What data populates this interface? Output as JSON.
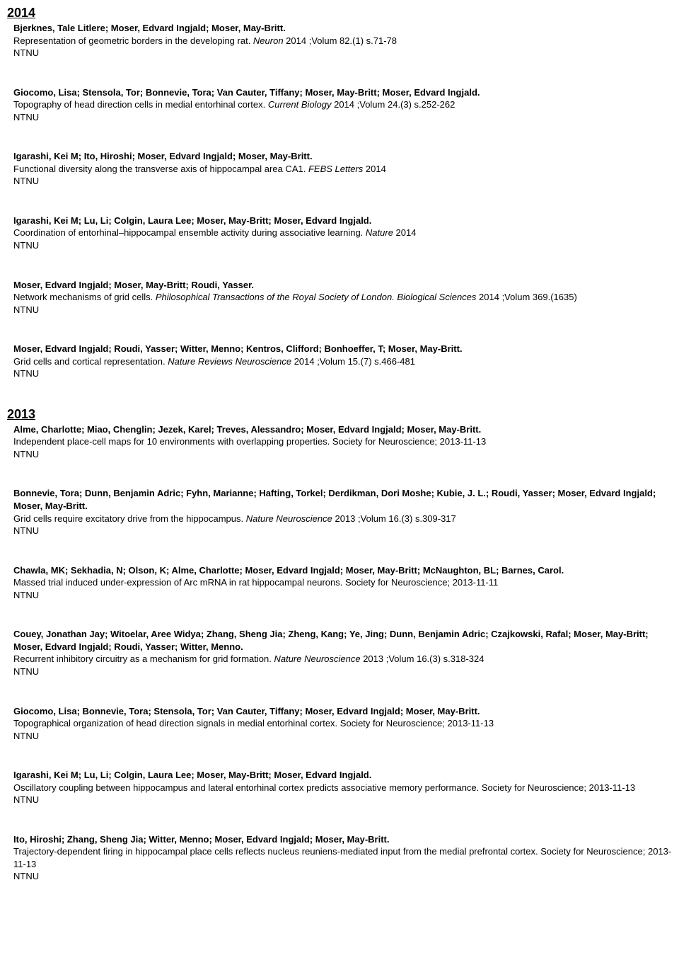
{
  "sections": [
    {
      "year": "2014",
      "entries": [
        {
          "authors": "Bjerknes, Tale Litlere; Moser, Edvard Ingjald; Moser, May-Britt.",
          "title": "Representation of geometric borders in the developing rat. ",
          "journal": "Neuron",
          "rest": " 2014 ;Volum 82.(1) s.71-78",
          "inst": "NTNU"
        },
        {
          "authors": "Giocomo, Lisa; Stensola, Tor; Bonnevie, Tora; Van Cauter, Tiffany; Moser, May-Britt; Moser, Edvard Ingjald.",
          "title": "Topography of head direction cells in medial entorhinal cortex. ",
          "journal": "Current Biology",
          "rest": " 2014 ;Volum 24.(3) s.252-262",
          "inst": "NTNU"
        },
        {
          "authors": "Igarashi, Kei M; Ito, Hiroshi; Moser, Edvard Ingjald; Moser, May-Britt.",
          "title": "Functional diversity along the transverse axis of hippocampal area CA1. ",
          "journal": "FEBS Letters",
          "rest": " 2014",
          "inst": "NTNU"
        },
        {
          "authors": "Igarashi, Kei M; Lu, Li; Colgin, Laura Lee; Moser, May-Britt; Moser, Edvard Ingjald.",
          "title": "Coordination of entorhinal–hippocampal ensemble activity during associative learning. ",
          "journal": "Nature",
          "rest": " 2014",
          "inst": "NTNU"
        },
        {
          "authors": "Moser, Edvard Ingjald; Moser, May-Britt; Roudi, Yasser.",
          "title": "Network mechanisms of grid cells. ",
          "journal": "Philosophical Transactions of the Royal Society of London. Biological Sciences",
          "rest": " 2014 ;Volum 369.(1635)",
          "inst": "NTNU"
        },
        {
          "authors": "Moser, Edvard Ingjald; Roudi, Yasser; Witter, Menno; Kentros, Clifford; Bonhoeffer, T; Moser, May-Britt.",
          "title": "Grid cells and cortical representation. ",
          "journal": "Nature Reviews Neuroscience",
          "rest": " 2014 ;Volum 15.(7) s.466-481",
          "inst": "NTNU"
        }
      ]
    },
    {
      "year": "2013",
      "entries": [
        {
          "authors": "Alme, Charlotte; Miao, Chenglin; Jezek, Karel; Treves, Alessandro; Moser, Edvard Ingjald; Moser, May-Britt.",
          "title": "Independent place-cell maps for 10 environments with overlapping properties. Society for Neuroscience; 2013-11-13",
          "journal": "",
          "rest": "",
          "inst": "NTNU"
        },
        {
          "authors": "Bonnevie, Tora; Dunn, Benjamin Adric; Fyhn, Marianne; Hafting, Torkel; Derdikman, Dori Moshe; Kubie, J. L.; Roudi, Yasser; Moser, Edvard Ingjald; Moser, May-Britt.",
          "title": "Grid cells require excitatory drive from the hippocampus. ",
          "journal": "Nature Neuroscience",
          "rest": " 2013 ;Volum 16.(3) s.309-317",
          "inst": "NTNU"
        },
        {
          "authors": "Chawla, MK; Sekhadia, N; Olson, K; Alme, Charlotte; Moser, Edvard Ingjald; Moser, May-Britt; McNaughton, BL; Barnes, Carol.",
          "title": "Massed trial induced under-expression of Arc mRNA in rat hippocampal neurons. Society for Neuroscience; 2013-11-11",
          "journal": "",
          "rest": "",
          "inst": "NTNU"
        },
        {
          "authors": "Couey, Jonathan Jay; Witoelar, Aree Widya; Zhang, Sheng Jia; Zheng, Kang; Ye, Jing; Dunn, Benjamin Adric; Czajkowski, Rafal; Moser, May-Britt; Moser, Edvard Ingjald; Roudi, Yasser; Witter, Menno.",
          "title": "Recurrent inhibitory circuitry as a mechanism for grid formation. ",
          "journal": "Nature Neuroscience",
          "rest": " 2013 ;Volum 16.(3) s.318-324",
          "inst": "NTNU"
        },
        {
          "authors": "Giocomo, Lisa; Bonnevie, Tora; Stensola, Tor; Van Cauter, Tiffany; Moser, Edvard Ingjald; Moser, May-Britt.",
          "title": "Topographical organization of head direction signals in medial entorhinal cortex. Society for Neuroscience; 2013-11-13",
          "journal": "",
          "rest": "",
          "inst": "NTNU"
        },
        {
          "authors": "Igarashi, Kei M; Lu, Li; Colgin, Laura Lee; Moser, May-Britt; Moser, Edvard Ingjald.",
          "title": "Oscillatory coupling between hippocampus and lateral entorhinal cortex predicts associative memory performance. Society for Neuroscience; 2013-11-13",
          "journal": "",
          "rest": "",
          "inst": "NTNU"
        },
        {
          "authors": "Ito, Hiroshi; Zhang, Sheng Jia; Witter, Menno; Moser, Edvard Ingjald; Moser, May-Britt.",
          "title": "Trajectory-dependent firing in hippocampal place cells reflects nucleus reuniens-mediated input from the medial prefrontal cortex. Society for Neuroscience; 2013-11-13",
          "journal": "",
          "rest": "",
          "inst": "NTNU"
        }
      ]
    }
  ]
}
